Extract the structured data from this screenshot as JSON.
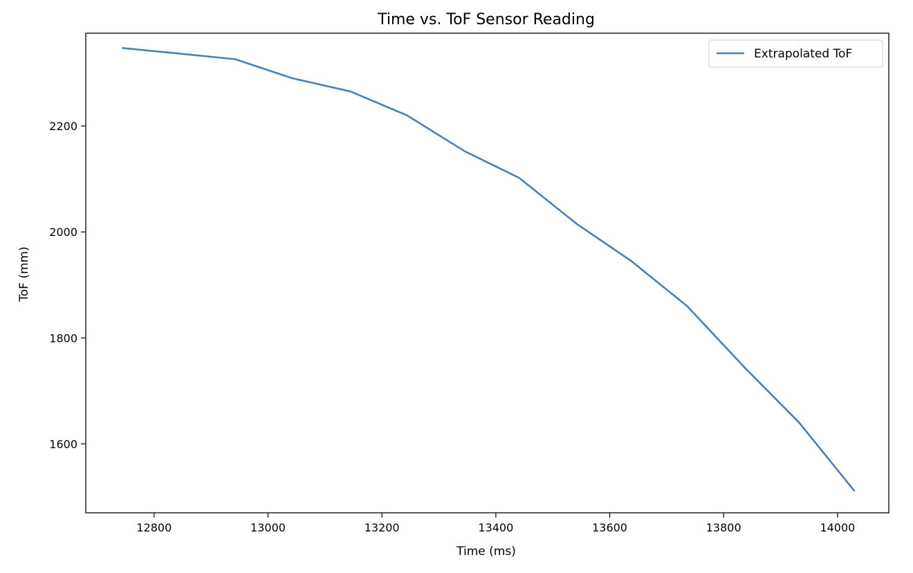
{
  "chart_data": {
    "type": "line",
    "title": "Time vs. ToF Sensor Reading",
    "xlabel": "Time (ms)",
    "ylabel": "ToF (mm)",
    "xlim": [
      12680,
      14090
    ],
    "ylim": [
      1470,
      2375
    ],
    "xticks": [
      12800,
      13000,
      13200,
      13400,
      13600,
      13800,
      14000
    ],
    "yticks": [
      1600,
      1800,
      2000,
      2200
    ],
    "grid": false,
    "legend_position": "top-right",
    "series": [
      {
        "name": "Extrapolated ToF",
        "color": "#4a7fb5",
        "x": [
          12745,
          12942,
          13043,
          13145,
          13244,
          13346,
          13441,
          13541,
          13638,
          13736,
          13836,
          13932,
          14029
        ],
        "y": [
          2347,
          2326,
          2290,
          2265,
          2220,
          2152,
          2102,
          2016,
          1945,
          1860,
          1745,
          1641,
          1512
        ]
      }
    ]
  }
}
